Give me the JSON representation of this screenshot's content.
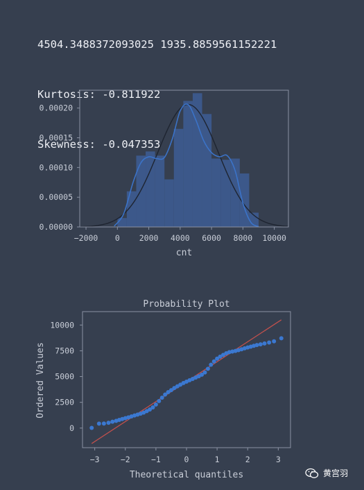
{
  "output": {
    "line1": "4504.3488372093025 1935.8859561152221",
    "line2": "Kurtosis: -0.811922",
    "line3": "Skewness: -0.047353"
  },
  "hist": {
    "xlabel": "cnt",
    "xticks": [
      -2000,
      0,
      2000,
      4000,
      6000,
      8000,
      10000
    ],
    "xtick_labels": [
      "−2000",
      "0",
      "2000",
      "4000",
      "6000",
      "8000",
      "10000"
    ],
    "yticks": [
      0,
      5e-05,
      0.0001,
      0.00015,
      0.0002
    ],
    "ytick_labels": [
      "0.00000",
      "0.00005",
      "0.00010",
      "0.00015",
      "0.00020"
    ]
  },
  "prob": {
    "title": "Probability Plot",
    "xlabel": "Theoretical quantiles",
    "ylabel": "Ordered Values",
    "xticks": [
      -3,
      -2,
      -1,
      0,
      1,
      2,
      3
    ],
    "xtick_labels": [
      "−3",
      "−2",
      "−1",
      "0",
      "1",
      "2",
      "3"
    ],
    "yticks": [
      0,
      2500,
      5000,
      7500,
      10000
    ],
    "ytick_labels": [
      "0",
      "2500",
      "5000",
      "7500",
      "10000"
    ]
  },
  "colors": {
    "background": "#363f4f",
    "frame": "#8a92a3",
    "bar": "#3d5a8f",
    "kde": "#3b73c8",
    "normal_fit": "#1e2430",
    "points": "#3b78d0",
    "fit_line": "#c0504d"
  },
  "watermark": {
    "text": "黄宫羽",
    "icon": "wechat-icon"
  },
  "chart_data": [
    {
      "type": "bar",
      "xlabel": "cnt",
      "ylabel": "",
      "xlim": [
        -2400,
        10900
      ],
      "ylim": [
        0,
        0.00023
      ],
      "bin_edges": [
        0,
        600,
        1200,
        1800,
        2400,
        3000,
        3600,
        4200,
        4800,
        5400,
        6000,
        6600,
        7200,
        7800,
        8400,
        9000
      ],
      "values": [
        1.5e-05,
        6e-05,
        0.00012,
        0.000127,
        0.00012,
        8e-05,
        0.000165,
        0.000212,
        0.000225,
        0.00019,
        0.000115,
        0.000113,
        0.000115,
        9e-05,
        2.4e-05
      ],
      "kde": {
        "x": [
          -200,
          400,
          1000,
          1500,
          2000,
          2500,
          3000,
          3500,
          4000,
          4500,
          5000,
          5500,
          6000,
          6500,
          7000,
          7500,
          8000,
          8500,
          9000
        ],
        "y": [
          1.5e-06,
          2.2e-05,
          7.5e-05,
          0.000108,
          0.000118,
          0.000115,
          0.000117,
          0.000148,
          0.000195,
          0.000206,
          0.00018,
          0.000145,
          0.000125,
          0.000118,
          0.00012,
          9.5e-05,
          4e-05,
          8e-06,
          5e-07
        ]
      },
      "normal_fit": {
        "mean": 4504.3488372093025,
        "std": 1935.8859561152221
      }
    },
    {
      "type": "scatter",
      "title": "Probability Plot",
      "xlabel": "Theoretical quantiles",
      "ylabel": "Ordered Values",
      "xlim": [
        -3.4,
        3.4
      ],
      "ylim": [
        -1900,
        11300
      ],
      "points": [
        [
          -3.1,
          22
        ],
        [
          -2.86,
          430
        ],
        [
          -2.7,
          440
        ],
        [
          -2.55,
          520
        ],
        [
          -2.42,
          620
        ],
        [
          -2.3,
          700
        ],
        [
          -2.2,
          790
        ],
        [
          -2.1,
          880
        ],
        [
          -2.0,
          960
        ],
        [
          -1.9,
          1040
        ],
        [
          -1.8,
          1130
        ],
        [
          -1.7,
          1220
        ],
        [
          -1.6,
          1310
        ],
        [
          -1.5,
          1400
        ],
        [
          -1.4,
          1500
        ],
        [
          -1.3,
          1640
        ],
        [
          -1.2,
          1800
        ],
        [
          -1.1,
          2010
        ],
        [
          -1.0,
          2280
        ],
        [
          -0.9,
          2620
        ],
        [
          -0.8,
          2950
        ],
        [
          -0.7,
          3250
        ],
        [
          -0.6,
          3490
        ],
        [
          -0.5,
          3680
        ],
        [
          -0.4,
          3880
        ],
        [
          -0.3,
          4050
        ],
        [
          -0.2,
          4210
        ],
        [
          -0.1,
          4370
        ],
        [
          0.0,
          4510
        ],
        [
          0.1,
          4640
        ],
        [
          0.2,
          4770
        ],
        [
          0.3,
          4900
        ],
        [
          0.4,
          5030
        ],
        [
          0.5,
          5180
        ],
        [
          0.6,
          5400
        ],
        [
          0.7,
          5750
        ],
        [
          0.8,
          6150
        ],
        [
          0.9,
          6470
        ],
        [
          1.0,
          6740
        ],
        [
          1.1,
          6930
        ],
        [
          1.2,
          7100
        ],
        [
          1.3,
          7260
        ],
        [
          1.4,
          7370
        ],
        [
          1.5,
          7430
        ],
        [
          1.6,
          7490
        ],
        [
          1.7,
          7560
        ],
        [
          1.8,
          7650
        ],
        [
          1.9,
          7740
        ],
        [
          2.0,
          7820
        ],
        [
          2.1,
          7900
        ],
        [
          2.2,
          7980
        ],
        [
          2.3,
          8060
        ],
        [
          2.42,
          8130
        ],
        [
          2.55,
          8210
        ],
        [
          2.7,
          8300
        ],
        [
          2.86,
          8420
        ],
        [
          3.1,
          8714
        ]
      ],
      "fit_line": {
        "slope": 1936,
        "intercept": 4504
      }
    }
  ]
}
